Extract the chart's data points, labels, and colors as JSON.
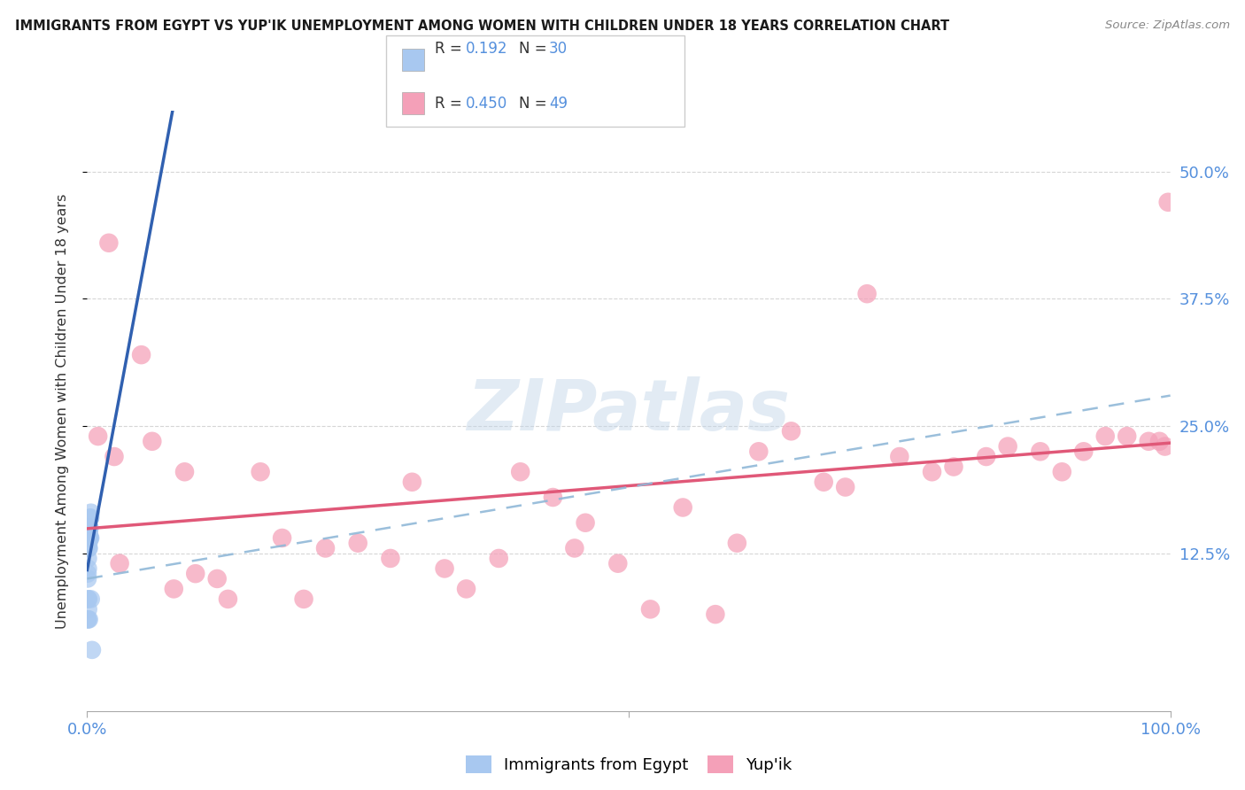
{
  "title": "IMMIGRANTS FROM EGYPT VS YUP'IK UNEMPLOYMENT AMONG WOMEN WITH CHILDREN UNDER 18 YEARS CORRELATION CHART",
  "source": "Source: ZipAtlas.com",
  "ylabel_label": "Unemployment Among Women with Children Under 18 years",
  "xlim": [
    0,
    100
  ],
  "ylim": [
    -3,
    56
  ],
  "legend_labels": [
    "Immigrants from Egypt",
    "Yup'ik"
  ],
  "R_egypt": "0.192",
  "N_egypt": "30",
  "R_yupik": "0.450",
  "N_yupik": "49",
  "color_egypt": "#a8c8f0",
  "color_yupik": "#f4a0b8",
  "color_trend_egypt": "#3060b0",
  "color_trend_yupik": "#e05878",
  "color_trend_dashed": "#90b8d8",
  "color_axis_text": "#5590dd",
  "ytick_vals": [
    12.5,
    25.0,
    37.5,
    50.0
  ],
  "egypt_x": [
    0.05,
    0.1,
    0.15,
    0.08,
    0.06,
    0.12,
    0.2,
    0.18,
    0.22,
    0.25,
    0.3,
    0.35,
    0.1,
    0.05,
    0.18,
    0.08,
    0.14,
    0.2,
    0.16,
    0.28,
    0.05,
    0.1,
    0.22,
    0.3,
    0.16,
    0.12,
    0.08,
    0.18,
    0.35,
    0.45
  ],
  "egypt_y": [
    10.0,
    14.0,
    14.0,
    12.0,
    8.0,
    13.0,
    14.0,
    15.0,
    15.0,
    14.0,
    16.0,
    16.5,
    14.0,
    10.5,
    14.5,
    11.0,
    13.5,
    15.0,
    14.0,
    16.0,
    6.0,
    7.0,
    15.0,
    14.0,
    13.0,
    8.0,
    6.0,
    6.0,
    8.0,
    3.0
  ],
  "yupik_x": [
    1.0,
    2.0,
    2.5,
    5.0,
    8.0,
    10.0,
    13.0,
    16.0,
    20.0,
    22.0,
    25.0,
    28.0,
    30.0,
    33.0,
    35.0,
    38.0,
    40.0,
    43.0,
    46.0,
    49.0,
    52.0,
    55.0,
    58.0,
    60.0,
    62.0,
    65.0,
    68.0,
    70.0,
    72.0,
    75.0,
    78.0,
    80.0,
    83.0,
    85.0,
    88.0,
    90.0,
    92.0,
    94.0,
    96.0,
    98.0,
    99.0,
    99.5,
    99.8,
    3.0,
    6.0,
    9.0,
    12.0,
    18.0,
    45.0
  ],
  "yupik_y": [
    24.0,
    43.0,
    22.0,
    32.0,
    9.0,
    10.5,
    8.0,
    20.5,
    8.0,
    13.0,
    13.5,
    12.0,
    19.5,
    11.0,
    9.0,
    12.0,
    20.5,
    18.0,
    15.5,
    11.5,
    7.0,
    17.0,
    6.5,
    13.5,
    22.5,
    24.5,
    19.5,
    19.0,
    38.0,
    22.0,
    20.5,
    21.0,
    22.0,
    23.0,
    22.5,
    20.5,
    22.5,
    24.0,
    24.0,
    23.5,
    23.5,
    23.0,
    47.0,
    11.5,
    23.5,
    20.5,
    10.0,
    14.0,
    13.0
  ]
}
